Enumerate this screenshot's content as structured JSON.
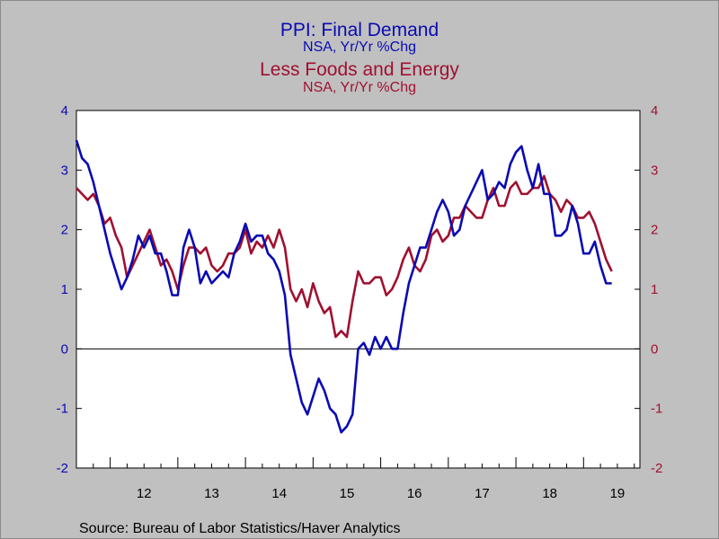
{
  "chart_data": {
    "type": "line",
    "title": "PPI: Final Demand",
    "subtitle": "NSA, Yr/Yr %Chg",
    "title2": "Less Foods and Energy",
    "subtitle2": "NSA, Yr/Yr %Chg",
    "source": "Source:  Bureau of Labor Statistics/Haver Analytics",
    "x_categories": [
      "12",
      "13",
      "14",
      "15",
      "16",
      "17",
      "18",
      "19"
    ],
    "x_range": [
      "2011-07",
      "2019-11"
    ],
    "ylim": [
      -2,
      4
    ],
    "yticks_left": [
      "4",
      "3",
      "2",
      "1",
      "0",
      "-1",
      "-2"
    ],
    "yticks_right": [
      "4",
      "3",
      "2",
      "1",
      "0",
      "-1",
      "-2"
    ],
    "zero_line": true,
    "grid": false,
    "colors": {
      "series1": "#0a0ab4",
      "series2": "#a01030",
      "background": "#c0c0c0",
      "plot_background": "#ffffff"
    },
    "series": [
      {
        "name": "PPI: Final Demand",
        "axis": "left",
        "start": "2011-07",
        "values": [
          3.5,
          3.2,
          3.1,
          2.8,
          2.4,
          2.0,
          1.6,
          1.3,
          1.0,
          1.2,
          1.5,
          1.9,
          1.7,
          1.9,
          1.6,
          1.6,
          1.3,
          0.9,
          0.9,
          1.7,
          2.0,
          1.7,
          1.1,
          1.3,
          1.1,
          1.2,
          1.3,
          1.2,
          1.6,
          1.8,
          2.1,
          1.8,
          1.9,
          1.9,
          1.6,
          1.5,
          1.3,
          0.9,
          -0.1,
          -0.5,
          -0.9,
          -1.1,
          -0.8,
          -0.5,
          -0.7,
          -1.0,
          -1.1,
          -1.4,
          -1.3,
          -1.1,
          0.0,
          0.1,
          -0.1,
          0.2,
          0.0,
          0.2,
          0.0,
          0.0,
          0.6,
          1.1,
          1.4,
          1.7,
          1.7,
          2.0,
          2.3,
          2.5,
          2.3,
          1.9,
          2.0,
          2.4,
          2.6,
          2.8,
          3.0,
          2.5,
          2.6,
          2.8,
          2.7,
          3.1,
          3.3,
          3.4,
          3.0,
          2.7,
          3.1,
          2.6,
          2.6,
          1.9,
          1.9,
          2.0,
          2.4,
          2.1,
          1.6,
          1.6,
          1.8,
          1.4,
          1.1,
          1.1
        ]
      },
      {
        "name": "Less Foods and Energy",
        "axis": "right",
        "start": "2011-07",
        "values": [
          2.7,
          2.6,
          2.5,
          2.6,
          2.4,
          2.1,
          2.2,
          1.9,
          1.7,
          1.2,
          1.4,
          1.6,
          1.8,
          2.0,
          1.7,
          1.4,
          1.5,
          1.3,
          1.0,
          1.4,
          1.7,
          1.7,
          1.6,
          1.7,
          1.4,
          1.3,
          1.4,
          1.6,
          1.6,
          1.7,
          2.0,
          1.6,
          1.8,
          1.7,
          1.9,
          1.7,
          2.0,
          1.7,
          1.0,
          0.8,
          1.0,
          0.7,
          1.1,
          0.8,
          0.6,
          0.7,
          0.2,
          0.3,
          0.2,
          0.8,
          1.3,
          1.1,
          1.1,
          1.2,
          1.2,
          0.9,
          1.0,
          1.2,
          1.5,
          1.7,
          1.4,
          1.3,
          1.5,
          1.9,
          2.0,
          1.8,
          1.9,
          2.2,
          2.2,
          2.4,
          2.3,
          2.2,
          2.2,
          2.5,
          2.7,
          2.4,
          2.4,
          2.7,
          2.8,
          2.6,
          2.6,
          2.7,
          2.7,
          2.9,
          2.6,
          2.5,
          2.3,
          2.5,
          2.4,
          2.2,
          2.2,
          2.3,
          2.1,
          1.8,
          1.5,
          1.3
        ]
      }
    ]
  }
}
